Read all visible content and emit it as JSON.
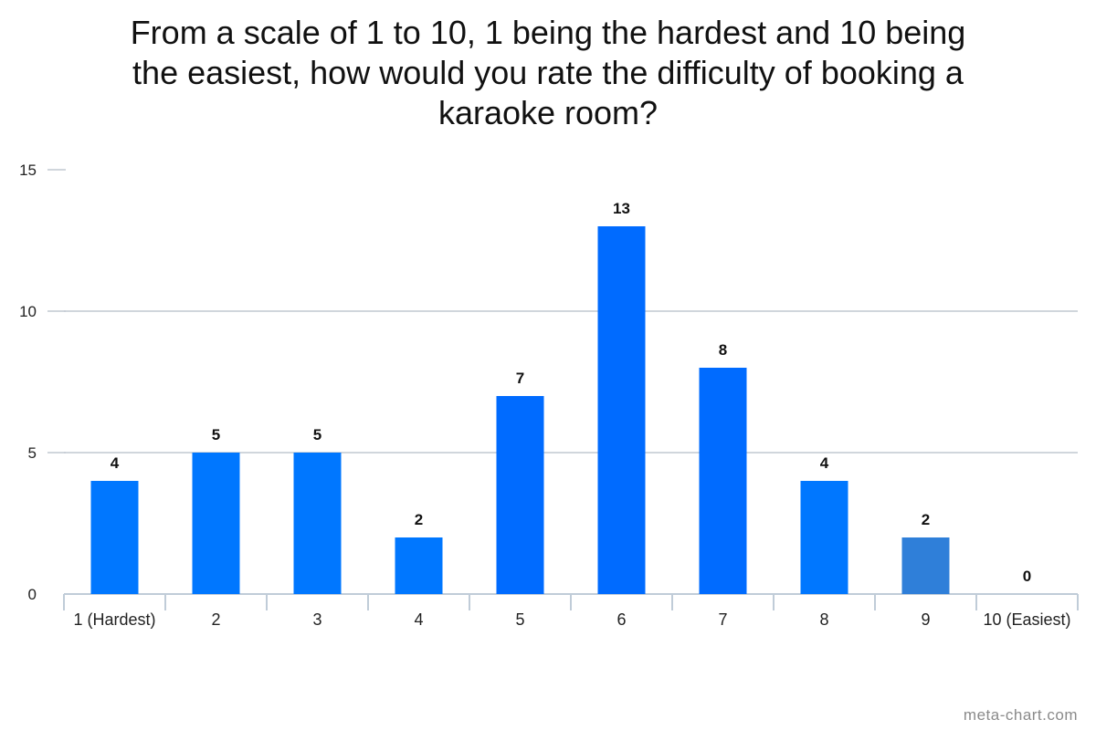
{
  "chart_data": {
    "type": "bar",
    "title_lines": [
      "From a scale of 1 to 10, 1 being the hardest and 10 being",
      "the easiest, how would you rate the difficulty of booking a",
      "karaoke room?"
    ],
    "categories": [
      "1 (Hardest)",
      "2",
      "3",
      "4",
      "5",
      "6",
      "7",
      "8",
      "9",
      "10 (Easiest)"
    ],
    "values": [
      4,
      5,
      5,
      2,
      7,
      13,
      8,
      4,
      2,
      0
    ],
    "data_labels": [
      "4",
      "5",
      "5",
      "2",
      "7",
      "13",
      "8",
      "4",
      "2",
      "0"
    ],
    "ylim": [
      0,
      15
    ],
    "yticks": [
      0,
      5,
      10,
      15
    ],
    "grid": true,
    "xlabel": "",
    "ylabel": "",
    "bar_colors": [
      "#0077ff",
      "#0077ff",
      "#0077ff",
      "#0077ff",
      "#006bff",
      "#006bff",
      "#006bff",
      "#0077ff",
      "#2f7fd9",
      "#0077ff"
    ]
  },
  "colors": {
    "grid": "#c0c8d0",
    "axis": "#c0ccd8",
    "label": "#111111",
    "tick_label": "#222222"
  },
  "watermark": "meta-chart.com"
}
